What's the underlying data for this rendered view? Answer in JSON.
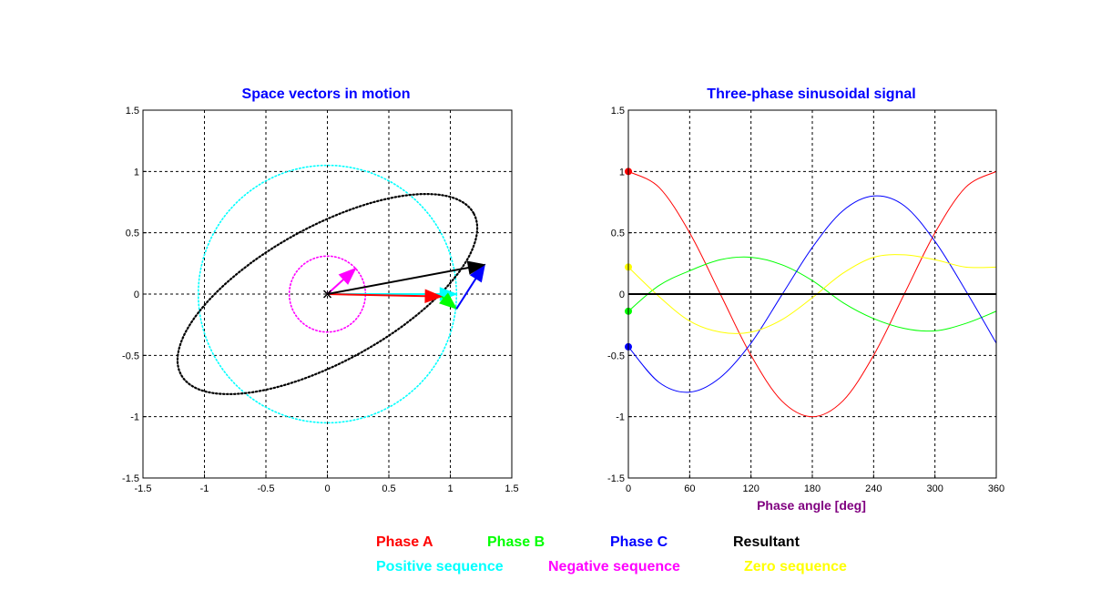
{
  "colors": {
    "phase_a": "#ff0000",
    "phase_b": "#00ff00",
    "phase_c": "#0000ff",
    "resultant": "#000000",
    "positive": "#00ffff",
    "negative": "#ff00ff",
    "zero": "#ffff00",
    "title": "#0000ff",
    "xlabel": "#800080"
  },
  "chart_data": [
    {
      "type": "scatter",
      "title": "Space vectors in motion",
      "xlabel": "",
      "ylabel": "",
      "xlim": [
        -1.5,
        1.5
      ],
      "ylim": [
        -1.5,
        1.5
      ],
      "xticks": [
        -1.5,
        -1,
        -0.5,
        0,
        0.5,
        1,
        1.5
      ],
      "yticks": [
        -1.5,
        -1,
        -0.5,
        0,
        0.5,
        1,
        1.5
      ],
      "xtick_labels": [
        "-1.5",
        "-1",
        "-0.5",
        "0",
        "0.5",
        "1",
        "1.5"
      ],
      "ytick_labels": [
        "-1.5",
        "-1",
        "-0.5",
        "0",
        "0.5",
        "1",
        "1.5"
      ],
      "grid": true,
      "loci": {
        "positive_sequence_radius": 1.05,
        "negative_sequence_radius": 0.31,
        "resultant_ellipse": {
          "a": 1.36,
          "b": 0.55,
          "rotation_deg": 29
        }
      },
      "vectors": [
        {
          "name": "Phase A",
          "from": [
            0,
            0
          ],
          "to": [
            0.93,
            -0.02
          ]
        },
        {
          "name": "Phase B",
          "from": [
            0.93,
            -0.02
          ],
          "to": [
            1.05,
            -0.12
          ]
        },
        {
          "name": "Phase C",
          "from": [
            1.05,
            -0.12
          ],
          "to": [
            1.28,
            0.24
          ]
        },
        {
          "name": "Resultant",
          "from": [
            0,
            0
          ],
          "to": [
            1.28,
            0.24
          ]
        },
        {
          "name": "Positive sequence",
          "from": [
            0,
            0
          ],
          "to": [
            1.05,
            0.0
          ]
        },
        {
          "name": "Negative sequence",
          "from": [
            0,
            0
          ],
          "to": [
            0.23,
            0.21
          ]
        }
      ]
    },
    {
      "type": "line",
      "title": "Three-phase sinusoidal signal",
      "xlabel": "Phase angle [deg]",
      "ylabel": "",
      "xlim": [
        0,
        360
      ],
      "ylim": [
        -1.5,
        1.5
      ],
      "xticks": [
        0,
        60,
        120,
        180,
        240,
        300,
        360
      ],
      "yticks": [
        -1.5,
        -1,
        -0.5,
        0,
        0.5,
        1,
        1.5
      ],
      "xtick_labels": [
        "0",
        "60",
        "120",
        "180",
        "240",
        "300",
        "360"
      ],
      "ytick_labels": [
        "-1.5",
        "-1",
        "-0.5",
        "0",
        "0.5",
        "1",
        "1.5"
      ],
      "grid": true,
      "x": [
        0,
        30,
        60,
        90,
        120,
        150,
        180,
        210,
        240,
        270,
        300,
        330,
        360
      ],
      "series": [
        {
          "name": "Phase A",
          "values": [
            1.0,
            0.87,
            0.5,
            0.0,
            -0.5,
            -0.87,
            -1.0,
            -0.87,
            -0.5,
            0.0,
            0.5,
            0.87,
            1.0
          ]
        },
        {
          "name": "Phase B",
          "values": [
            -0.14,
            0.07,
            0.19,
            0.28,
            0.3,
            0.24,
            0.11,
            -0.07,
            -0.2,
            -0.28,
            -0.3,
            -0.24,
            -0.14
          ]
        },
        {
          "name": "Phase C",
          "values": [
            -0.43,
            -0.72,
            -0.8,
            -0.68,
            -0.4,
            -0.01,
            0.38,
            0.68,
            0.8,
            0.72,
            0.43,
            0.03,
            -0.4
          ]
        },
        {
          "name": "Zero sequence",
          "values": [
            0.22,
            -0.02,
            -0.22,
            -0.31,
            -0.31,
            -0.21,
            -0.03,
            0.17,
            0.3,
            0.32,
            0.28,
            0.22,
            0.22
          ]
        },
        {
          "name": "Resultant",
          "values": [
            0,
            0,
            0,
            0,
            0,
            0,
            0,
            0,
            0,
            0,
            0,
            0,
            0
          ]
        }
      ],
      "markers_at_zero": [
        {
          "name": "Phase A",
          "value": 1.0
        },
        {
          "name": "Phase B",
          "value": -0.14
        },
        {
          "name": "Phase C",
          "value": -0.43
        },
        {
          "name": "Zero sequence",
          "value": 0.22
        }
      ]
    }
  ],
  "legend": {
    "phase_a": "Phase A",
    "phase_b": "Phase B",
    "phase_c": "Phase C",
    "resultant": "Resultant",
    "positive": "Positive sequence",
    "negative": "Negative sequence",
    "zero": "Zero sequence"
  }
}
